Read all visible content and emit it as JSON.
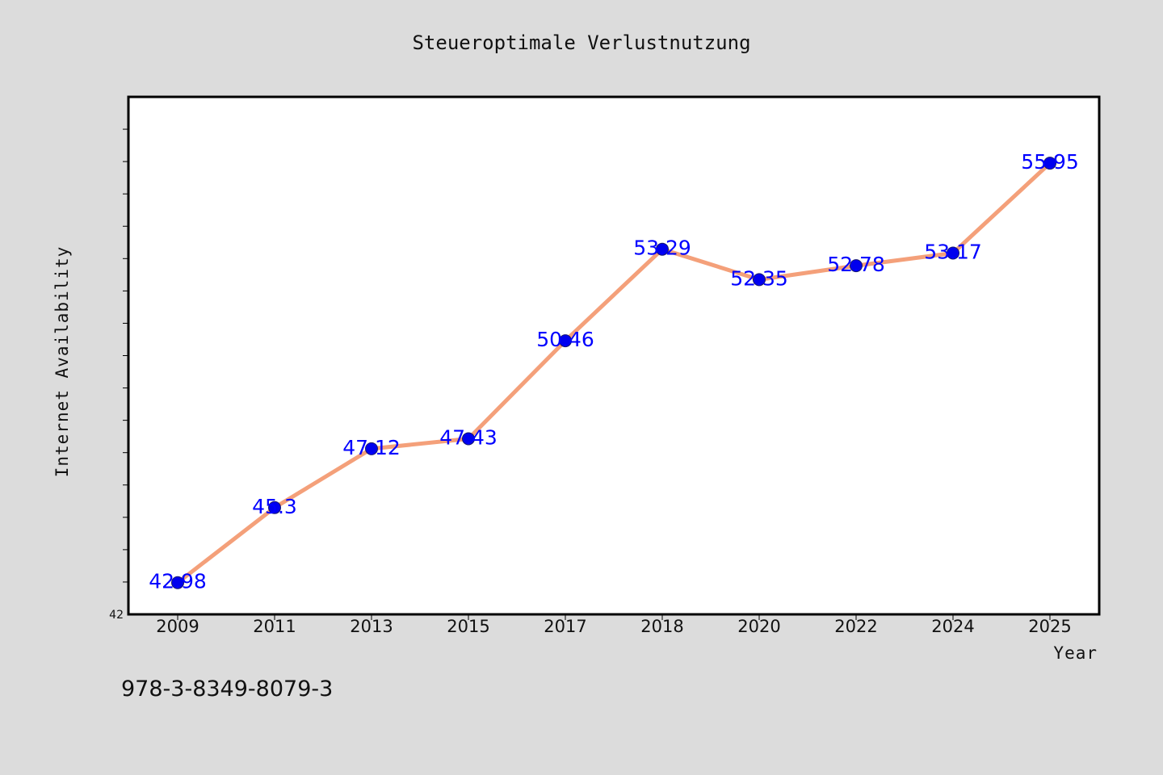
{
  "chart_data": {
    "type": "line",
    "title": "Steueroptimale Verlustnutzung",
    "xlabel": "Year",
    "ylabel": "Internet Availability",
    "categories": [
      "2009",
      "2011",
      "2013",
      "2015",
      "2017",
      "2018",
      "2020",
      "2022",
      "2024",
      "2025"
    ],
    "series": [
      {
        "values": [
          42.98,
          45.3,
          47.12,
          47.43,
          50.46,
          53.29,
          52.35,
          52.78,
          53.17,
          55.95
        ],
        "data_labels": [
          "42.98",
          "45.3",
          "47.12",
          "47.43",
          "50.46",
          "53.29",
          "52.35",
          "52.78",
          "53.17",
          "55.95"
        ],
        "line_color": "#f4a07a",
        "marker_color": "#0000ee"
      }
    ],
    "ylim": [
      42,
      58
    ],
    "y_tick_labels": [
      "42"
    ],
    "grid": false,
    "legend": "none"
  },
  "footnote": "978-3-8349-8079-3",
  "colors": {
    "page_background": "#dcdcdc",
    "plot_background": "#ffffff",
    "data_label": "#0000ff"
  }
}
